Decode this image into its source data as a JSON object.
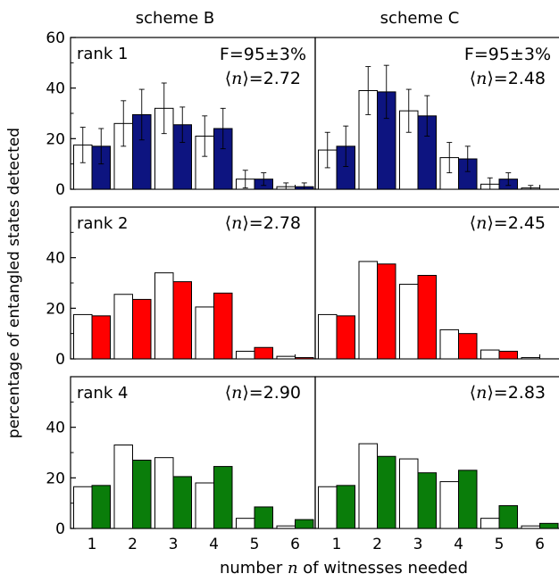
{
  "figure": {
    "y_axis_label": "percentage of entangled states detected",
    "x_axis_label_prefix": "number ",
    "x_axis_label_var": "n",
    "x_axis_label_suffix": " of witnesses needed",
    "fidelity_label": "F=95±3%"
  },
  "colors": {
    "open_bar": "#ffffff",
    "rank1": "#0d1480",
    "rank2": "#ff0000",
    "rank4": "#0a7d0a",
    "axis": "#000000"
  },
  "chart_data": {
    "type": "bar",
    "categories": [
      "1",
      "2",
      "3",
      "4",
      "5",
      "6"
    ],
    "ylim": [
      0,
      60
    ],
    "y_ticks": [
      0,
      20,
      40,
      60
    ],
    "columns": [
      "scheme B",
      "scheme C"
    ],
    "rows": [
      "rank 1",
      "rank 2",
      "rank 4"
    ],
    "panels": [
      {
        "row": "rank 1",
        "column": "scheme B",
        "mean_n": "⟨n⟩=2.72",
        "fidelity": "F=95±3%",
        "error_bars": true,
        "series": [
          {
            "values": [
              17.5,
              26,
              32,
              21,
              4,
              1
            ],
            "errors": [
              7,
              9,
              10,
              8,
              3.5,
              1.5
            ]
          },
          {
            "values": [
              17,
              29.5,
              25.5,
              24,
              4,
              1
            ],
            "errors": [
              7,
              10,
              7,
              8,
              2.5,
              1.5
            ]
          }
        ]
      },
      {
        "row": "rank 1",
        "column": "scheme C",
        "mean_n": "⟨n⟩=2.48",
        "fidelity": "F=95±3%",
        "error_bars": true,
        "series": [
          {
            "values": [
              15.5,
              39,
              31,
              12.5,
              2,
              0.5
            ],
            "errors": [
              7,
              9.5,
              8.5,
              6,
              2.5,
              1
            ]
          },
          {
            "values": [
              17,
              38.5,
              29,
              12,
              4,
              0
            ],
            "errors": [
              8,
              10.5,
              8,
              5,
              2.5,
              0
            ]
          }
        ]
      },
      {
        "row": "rank 2",
        "column": "scheme B",
        "mean_n": "⟨n⟩=2.78",
        "series": [
          {
            "values": [
              17.5,
              25.5,
              34,
              20.5,
              3,
              1
            ]
          },
          {
            "values": [
              17,
              23.5,
              30.5,
              26,
              4.5,
              0.5
            ]
          }
        ]
      },
      {
        "row": "rank 2",
        "column": "scheme C",
        "mean_n": "⟨n⟩=2.45",
        "series": [
          {
            "values": [
              17.5,
              38.5,
              29.5,
              11.5,
              3.5,
              0.5
            ]
          },
          {
            "values": [
              17,
              37.5,
              33,
              10,
              3,
              0
            ]
          }
        ]
      },
      {
        "row": "rank 4",
        "column": "scheme B",
        "mean_n": "⟨n⟩=2.90",
        "series": [
          {
            "values": [
              16.5,
              33,
              28,
              18,
              4,
              1
            ]
          },
          {
            "values": [
              17,
              27,
              20.5,
              24.5,
              8.5,
              3.5
            ]
          }
        ]
      },
      {
        "row": "rank 4",
        "column": "scheme C",
        "mean_n": "⟨n⟩=2.83",
        "series": [
          {
            "values": [
              16.5,
              33.5,
              27.5,
              18.5,
              4,
              1
            ]
          },
          {
            "values": [
              17,
              28.5,
              22,
              23,
              9,
              2
            ]
          }
        ]
      }
    ]
  }
}
